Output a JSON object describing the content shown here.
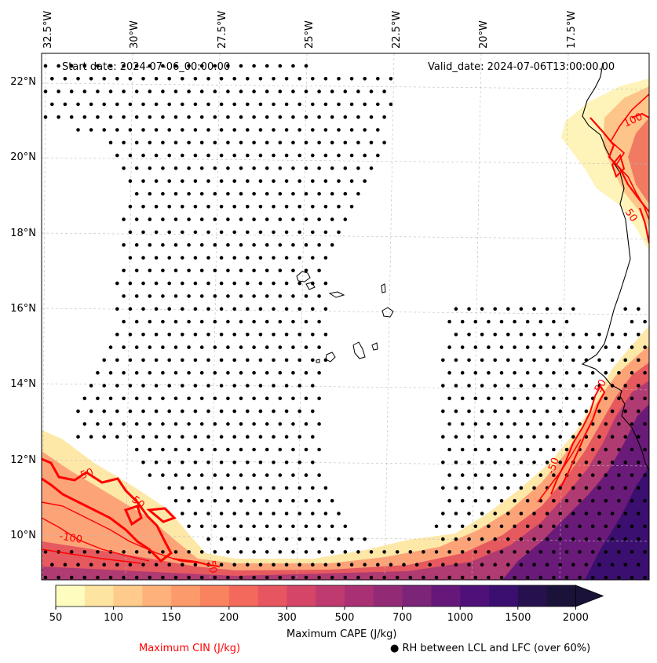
{
  "map": {
    "start_date_text": "Start date: 2024-07-06_00:00:00",
    "valid_date_text": "Valid_date: 2024-07-06T13:00:00.00",
    "lon_labels": [
      "32.5°W",
      "30°W",
      "27.5°W",
      "25°W",
      "22.5°W",
      "20°W",
      "17.5°W"
    ],
    "lat_labels": [
      "22°N",
      "20°N",
      "18°N",
      "16°N",
      "14°N",
      "12°N",
      "10°N"
    ],
    "contour_labels": [
      "100",
      "50",
      "-50",
      "-50",
      "-50",
      "-100",
      "50",
      "50"
    ]
  },
  "colorbar": {
    "ticks": [
      "50",
      "100",
      "150",
      "200",
      "300",
      "500",
      "700",
      "1000",
      "1500",
      "2000"
    ],
    "colors": [
      "#fefdbf",
      "#fde4a0",
      "#fecb8a",
      "#feb27a",
      "#fd9a6b",
      "#f9825f",
      "#f36a5c",
      "#e65560",
      "#d44567",
      "#bf3a6e",
      "#a93173",
      "#922a76",
      "#7c2478",
      "#66187a",
      "#501079",
      "#3b0f6f",
      "#26104d",
      "#1a1238"
    ],
    "title": "Maximum CAPE (J/kg)"
  },
  "legend": {
    "cin_label": "Maximum CIN (J/kg)",
    "cin_color": "#ff0000",
    "rh_label": "RH between LCL and LFC (over 60%)",
    "rh_marker": "●"
  }
}
